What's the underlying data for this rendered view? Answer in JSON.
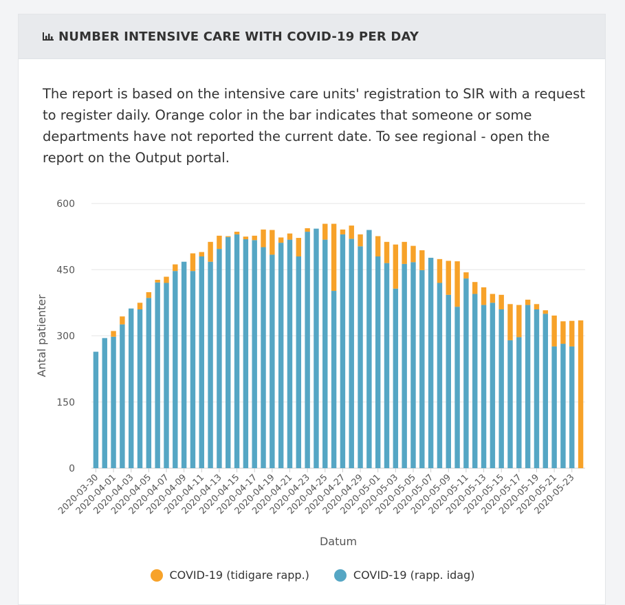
{
  "header": {
    "title": "NUMBER INTENSIVE CARE WITH COVID-19 PER DAY",
    "icon": "bar-chart-icon"
  },
  "description": "The report is based on the intensive care units' registration to SIR with a request to register daily. Orange color in the bar indicates that someone or some departments have not reported the current date. To see regional - open the report on the Output portal.",
  "colors": {
    "today": "#55a6c4",
    "earlier": "#f7a229",
    "grid": "#e6e6e6",
    "axis_text": "#555555"
  },
  "chart_data": {
    "type": "bar",
    "stacked": true,
    "xlabel": "Datum",
    "ylabel": "Antal patienter",
    "ylim": [
      0,
      600
    ],
    "yticks": [
      0,
      150,
      300,
      450,
      600
    ],
    "grid": true,
    "legend_position": "bottom-center",
    "categories": [
      "2020-03-30",
      "2020-03-31",
      "2020-04-01",
      "2020-04-02",
      "2020-04-03",
      "2020-04-04",
      "2020-04-05",
      "2020-04-06",
      "2020-04-07",
      "2020-04-08",
      "2020-04-09",
      "2020-04-10",
      "2020-04-11",
      "2020-04-12",
      "2020-04-13",
      "2020-04-14",
      "2020-04-15",
      "2020-04-16",
      "2020-04-17",
      "2020-04-18",
      "2020-04-19",
      "2020-04-20",
      "2020-04-21",
      "2020-04-22",
      "2020-04-23",
      "2020-04-24",
      "2020-04-25",
      "2020-04-26",
      "2020-04-27",
      "2020-04-28",
      "2020-04-29",
      "2020-04-30",
      "2020-05-01",
      "2020-05-02",
      "2020-05-03",
      "2020-05-04",
      "2020-05-05",
      "2020-05-06",
      "2020-05-07",
      "2020-05-08",
      "2020-05-09",
      "2020-05-10",
      "2020-05-11",
      "2020-05-12",
      "2020-05-13",
      "2020-05-14",
      "2020-05-15",
      "2020-05-16",
      "2020-05-17",
      "2020-05-18",
      "2020-05-19",
      "2020-05-20",
      "2020-05-21",
      "2020-05-22",
      "2020-05-23",
      "2020-05-24"
    ],
    "tick_labels": [
      "2020-03-30",
      "2020-04-01",
      "2020-04-03",
      "2020-04-05",
      "2020-04-07",
      "2020-04-09",
      "2020-04-11",
      "2020-04-13",
      "2020-04-15",
      "2020-04-17",
      "2020-04-19",
      "2020-04-21",
      "2020-04-23",
      "2020-04-25",
      "2020-04-27",
      "2020-04-29",
      "2020-05-01",
      "2020-05-03",
      "2020-05-05",
      "2020-05-07",
      "2020-05-09",
      "2020-05-11",
      "2020-05-13",
      "2020-05-15",
      "2020-05-17",
      "2020-05-19",
      "2020-05-21",
      "2020-05-23"
    ],
    "series": [
      {
        "name": "COVID-19 (rapp. idag)",
        "values": [
          264,
          295,
          298,
          326,
          362,
          360,
          386,
          421,
          420,
          447,
          468,
          447,
          480,
          468,
          497,
          524,
          530,
          519,
          517,
          501,
          484,
          511,
          518,
          480,
          536,
          543,
          518,
          402,
          530,
          520,
          503,
          540,
          480,
          465,
          407,
          463,
          467,
          449,
          477,
          420,
          393,
          366,
          430,
          395,
          370,
          375,
          360,
          290,
          297,
          370,
          360,
          350,
          276,
          282,
          276,
          0
        ]
      },
      {
        "name": "COVID-19 (tidigare rapp.)",
        "values": [
          0,
          0,
          13,
          18,
          0,
          15,
          13,
          6,
          14,
          15,
          0,
          40,
          10,
          45,
          30,
          2,
          6,
          6,
          10,
          40,
          56,
          12,
          14,
          42,
          8,
          0,
          36,
          152,
          11,
          30,
          27,
          0,
          46,
          48,
          100,
          50,
          37,
          45,
          0,
          54,
          77,
          103,
          14,
          27,
          40,
          20,
          33,
          82,
          73,
          12,
          12,
          8,
          70,
          51,
          58,
          335
        ]
      }
    ]
  },
  "legend": {
    "earlier_label": "COVID-19 (tidigare rapp.)",
    "today_label": "COVID-19 (rapp. idag)"
  }
}
